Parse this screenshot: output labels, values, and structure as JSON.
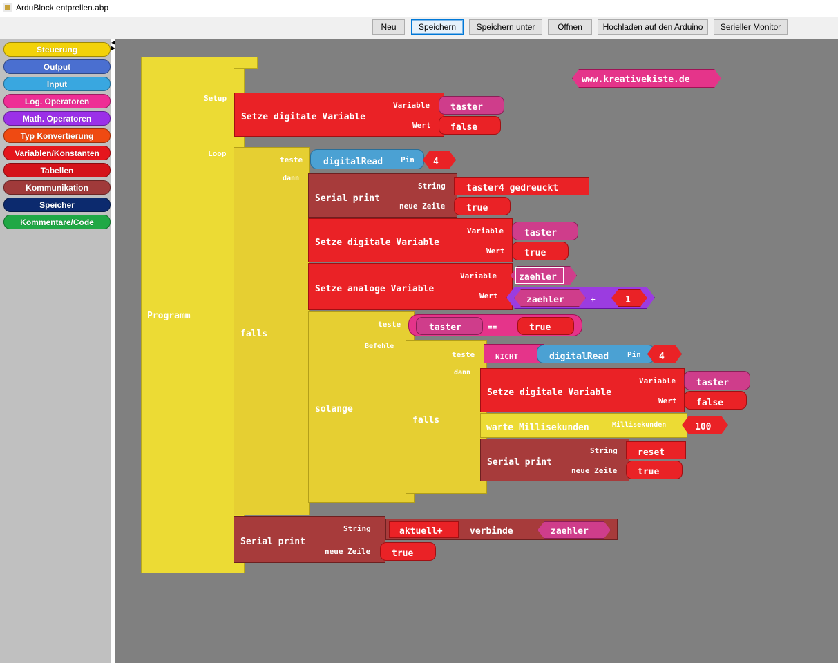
{
  "window": {
    "title": "ArduBlock entprellen.abp"
  },
  "toolbar": {
    "buttons": [
      "Neu",
      "Speichern",
      "Speichern unter",
      "Öffnen",
      "Hochladen auf den Arduino",
      "Serieller Monitor"
    ]
  },
  "palette": {
    "categories": [
      {
        "label": "Steuerung",
        "color": "#f2d20a"
      },
      {
        "label": "Output",
        "color": "#4a6fd0"
      },
      {
        "label": "Input",
        "color": "#39a7e0"
      },
      {
        "label": "Log. Operatoren",
        "color": "#ee2e95"
      },
      {
        "label": "Math. Operatoren",
        "color": "#9b30e8"
      },
      {
        "label": "Typ Konvertierung",
        "color": "#ef4a12"
      },
      {
        "label": "Variablen/Konstanten",
        "color": "#e5161c"
      },
      {
        "label": "Tabellen",
        "color": "#d4131a"
      },
      {
        "label": "Kommunikation",
        "color": "#a03a3a"
      },
      {
        "label": "Speicher",
        "color": "#0c2a6e"
      },
      {
        "label": "Kommentare/Code",
        "color": "#20a845"
      }
    ]
  },
  "canvas": {
    "program_label": "Programm",
    "setup_label": "Setup",
    "loop_label": "Loop",
    "url_block": "www.kreativekiste.de",
    "setup_block": {
      "title": "Setze digitale Variable",
      "variable_label": "Variable",
      "value_label": "Wert",
      "variable": "taster",
      "value": "false"
    },
    "if1": {
      "label": "falls",
      "test_label": "teste",
      "then_label": "dann",
      "digitalread": "digitalRead",
      "pin_label": "Pin",
      "pin": "4"
    },
    "serial1": {
      "title": "Serial print",
      "string_label": "String",
      "newline_label": "neue Zeile",
      "string": "taster4 gedreuckt",
      "newline": "true"
    },
    "set2": {
      "title": "Setze digitale Variable",
      "variable_label": "Variable",
      "value_label": "Wert",
      "variable": "taster",
      "value": "true"
    },
    "set_analog": {
      "title": "Setze analoge Variable",
      "variable_label": "Variable",
      "value_label": "Wert",
      "variable": "zaehler",
      "expr_var": "zaehler",
      "op": "+",
      "expr_num": "1"
    },
    "while": {
      "label": "solange",
      "test_label": "teste",
      "cmds_label": "Befehle",
      "var": "taster",
      "op": "==",
      "value": "true"
    },
    "if2": {
      "label": "falls",
      "test_label": "teste",
      "then_label": "dann",
      "not": "NICHT",
      "digitalread": "digitalRead",
      "pin_label": "Pin",
      "pin": "4"
    },
    "set3": {
      "title": "Setze digitale Variable",
      "variable_label": "Variable",
      "value_label": "Wert",
      "variable": "taster",
      "value": "false"
    },
    "wait": {
      "title": "warte Millisekunden",
      "param_label": "Millisekunden",
      "value": "100"
    },
    "serial2": {
      "title": "Serial print",
      "string_label": "String",
      "newline_label": "neue Zeile",
      "string": "reset",
      "newline": "true"
    },
    "serial3": {
      "title": "Serial print",
      "string_label": "String",
      "newline_label": "neue Zeile",
      "str_part": "aktuell+",
      "join_label": "verbinde",
      "join_var": "zaehler",
      "newline": "true"
    }
  }
}
